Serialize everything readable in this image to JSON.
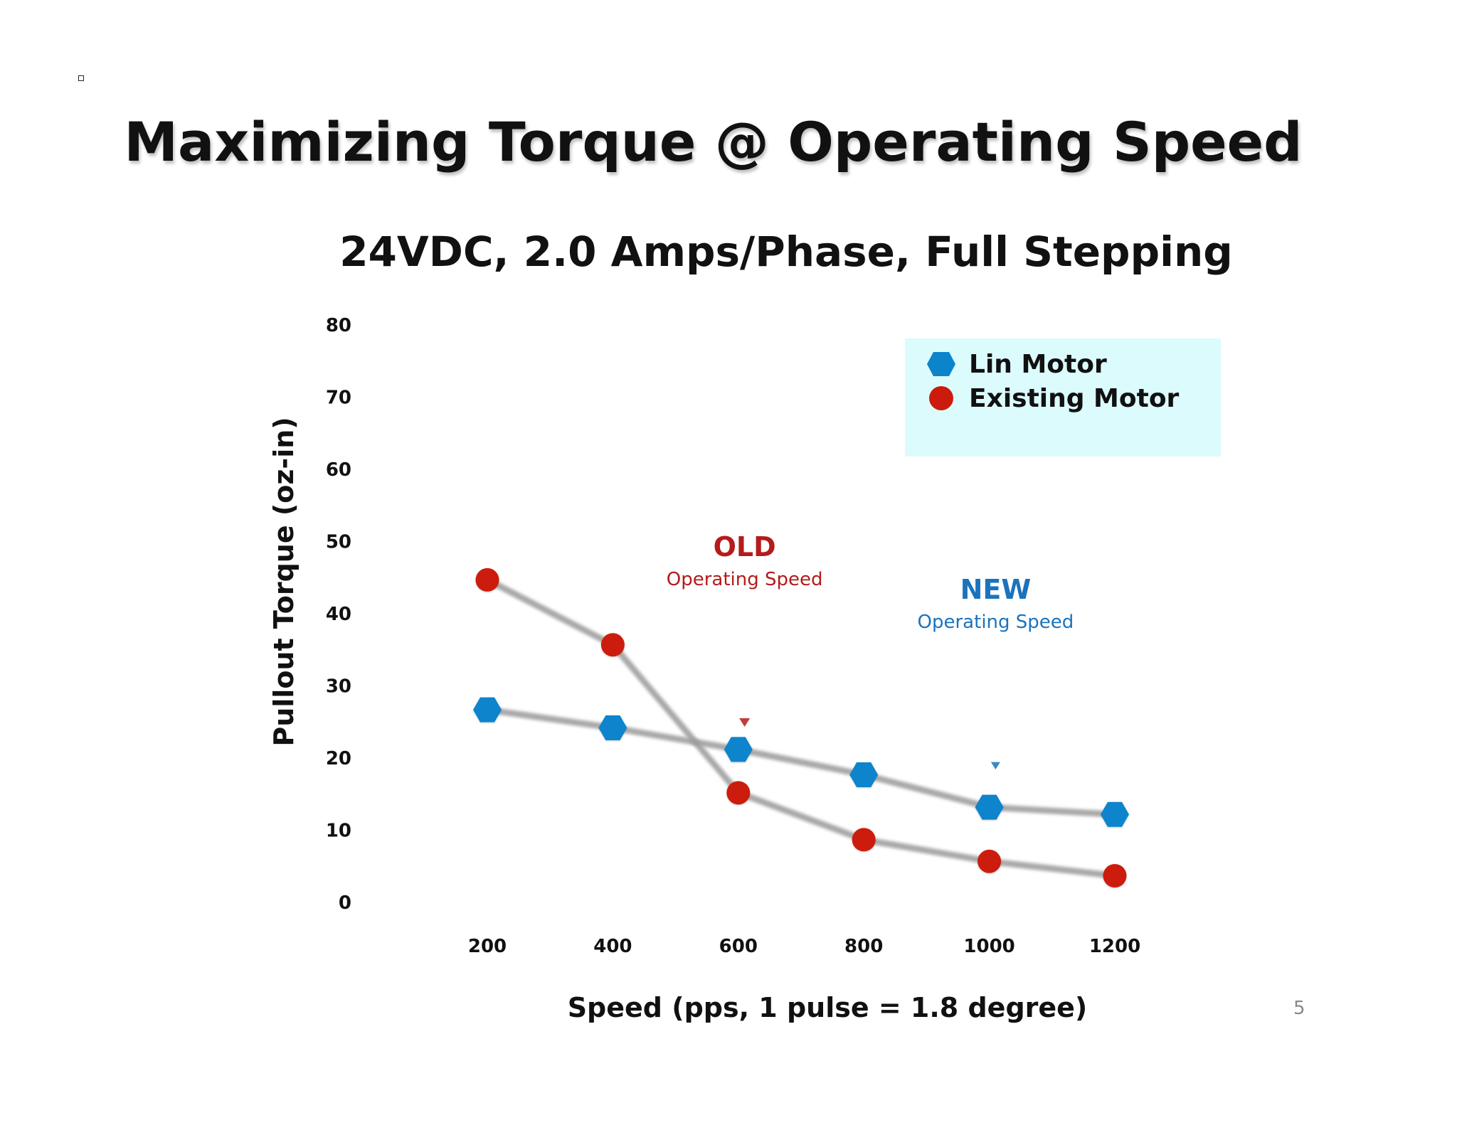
{
  "slide": {
    "title": "Maximizing Torque @ Operating Speed",
    "page_number": "5"
  },
  "colors": {
    "lin": "#0b84cc",
    "existing": "#cc1b0c",
    "old_annotation": "#b51b1b",
    "new_annotation": "#1a73bd",
    "legend_bg": "#dcfbfd",
    "line": "#9a9a9a"
  },
  "chart_data": {
    "type": "line",
    "title": "24VDC, 2.0 Amps/Phase, Full Stepping",
    "xlabel": "Speed (pps, 1 pulse = 1.8 degree)",
    "ylabel": "Pullout Torque (oz-in)",
    "x": [
      200,
      400,
      600,
      800,
      1000,
      1200
    ],
    "xlim": [
      200,
      1200
    ],
    "ylim": [
      0,
      80
    ],
    "x_ticks": [
      "200",
      "400",
      "600",
      "800",
      "1000",
      "1200"
    ],
    "y_ticks": [
      "0",
      "10",
      "20",
      "30",
      "40",
      "50",
      "60",
      "70",
      "80"
    ],
    "grid": false,
    "legend_position": "top-right",
    "series": [
      {
        "name": "Lin Motor",
        "marker": "hexagon",
        "values": [
          26,
          23.5,
          20.5,
          17,
          12.5,
          11.5
        ]
      },
      {
        "name": "Existing Motor",
        "marker": "circle",
        "values": [
          44,
          35,
          14.5,
          8,
          5,
          3
        ]
      }
    ],
    "annotations": [
      {
        "title": "OLD",
        "text": "Operating Speed",
        "x": 610,
        "color": "old"
      },
      {
        "title": "NEW",
        "text": "Operating Speed",
        "x": 1010,
        "color": "new"
      }
    ]
  }
}
